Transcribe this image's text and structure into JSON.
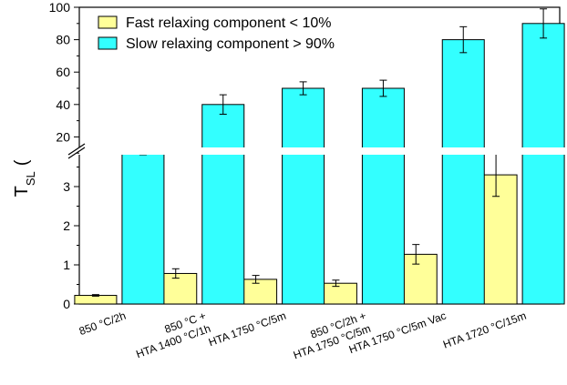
{
  "chart_data": {
    "type": "bar",
    "ylabel_main": "T",
    "ylabel_sub": "SL",
    "ylabel_trailing": "(",
    "categories": [
      [
        "850 °C/2h"
      ],
      [
        "850 °C +",
        "HTA 1400 °C/1h"
      ],
      [
        "HTA 1750 °C/5m"
      ],
      [
        "850 °C/2h +",
        "HTA 1750 °C/5m"
      ],
      [
        "HTA 1750 °C/5m Vac"
      ],
      [
        "HTA 1720 °C/15m"
      ]
    ],
    "series": [
      {
        "name": "Fast relaxing component < 10%",
        "color": "#ffff99",
        "values": [
          0.22,
          0.78,
          0.63,
          0.53,
          1.27,
          3.3
        ],
        "errors": [
          0.02,
          0.12,
          0.1,
          0.08,
          0.25,
          0.55
        ]
      },
      {
        "name": "Slow relaxing component > 90%",
        "color": "#33ffff",
        "values": [
          10,
          40,
          50,
          50,
          80,
          90
        ],
        "errors": [
          1,
          6,
          4,
          5,
          8,
          9
        ]
      }
    ],
    "axis_break": {
      "lower_range": [
        0,
        4
      ],
      "upper_range": [
        9,
        100
      ],
      "lower_ticks": [
        "0",
        "1",
        "2",
        "3"
      ],
      "upper_ticks": [
        "20",
        "40",
        "60",
        "80",
        "100"
      ]
    },
    "legend_position": "top-left"
  }
}
